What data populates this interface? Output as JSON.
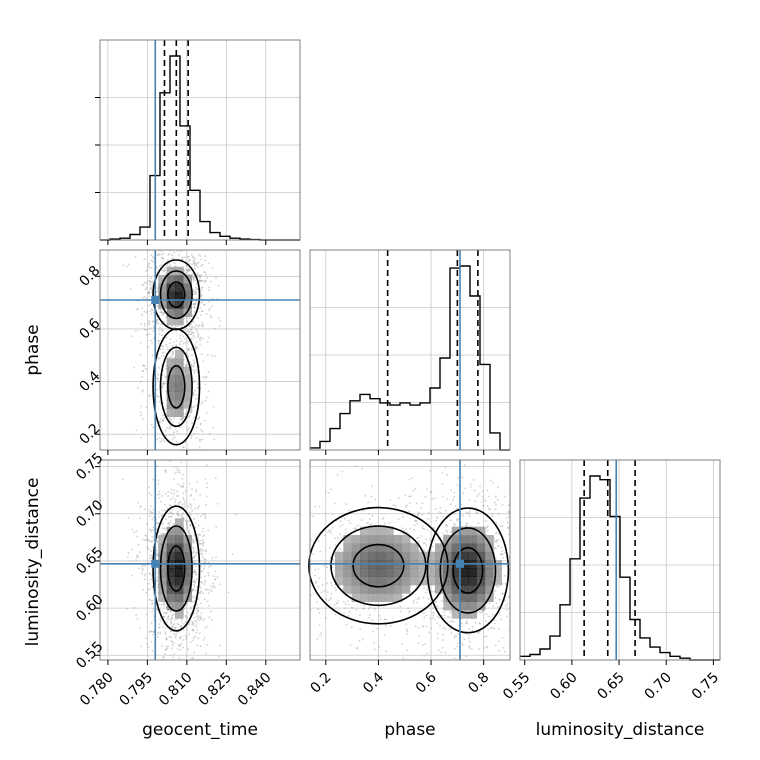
{
  "chart_data": {
    "type": "corner",
    "parameters": [
      "geocent_time",
      "phase",
      "luminosity_distance"
    ],
    "truth": {
      "geocent_time": 0.798,
      "phase": 0.71,
      "luminosity_distance": 0.647
    },
    "truth_color": "#4682b4",
    "grid": true,
    "axes": {
      "geocent_time": {
        "lim": [
          0.777,
          0.853
        ],
        "ticks": [
          "0.780",
          "0.795",
          "0.810",
          "0.825",
          "0.840"
        ],
        "tick_values": [
          0.78,
          0.795,
          0.81,
          0.825,
          0.84
        ]
      },
      "phase": {
        "lim": [
          0.14,
          0.9
        ],
        "ticks": [
          "0.2",
          "0.4",
          "0.6",
          "0.8"
        ],
        "tick_values": [
          0.2,
          0.4,
          0.6,
          0.8
        ]
      },
      "luminosity_distance": {
        "lim": [
          0.545,
          0.757
        ],
        "ticks": [
          "0.55",
          "0.60",
          "0.65",
          "0.70",
          "0.75"
        ],
        "tick_values": [
          0.55,
          0.6,
          0.65,
          0.7,
          0.75
        ]
      }
    },
    "histograms": {
      "geocent_time": {
        "bins": [
          0.777,
          0.853
        ],
        "counts": [
          0,
          0.005,
          0.01,
          0.03,
          0.07,
          0.35,
          0.8,
          1.0,
          0.62,
          0.27,
          0.1,
          0.04,
          0.02,
          0.01,
          0.005,
          0.002,
          0,
          0,
          0,
          0
        ],
        "quantiles": [
          0.8015,
          0.806,
          0.8105
        ]
      },
      "phase": {
        "bins": [
          0.14,
          0.9
        ],
        "counts": [
          0.01,
          0.04,
          0.1,
          0.17,
          0.23,
          0.26,
          0.24,
          0.22,
          0.21,
          0.22,
          0.21,
          0.22,
          0.29,
          0.43,
          0.85,
          0.86,
          0.72,
          0.4,
          0.08,
          0
        ],
        "quantiles": [
          0.435,
          0.7,
          0.778
        ]
      },
      "luminosity_distance": {
        "bins": [
          0.545,
          0.757
        ],
        "counts": [
          0.02,
          0.03,
          0.06,
          0.13,
          0.3,
          0.55,
          0.88,
          1.0,
          0.98,
          0.78,
          0.45,
          0.22,
          0.12,
          0.07,
          0.04,
          0.02,
          0.01,
          0,
          0,
          0
        ],
        "quantiles": [
          0.613,
          0.638,
          0.667
        ]
      }
    },
    "scatter_centers": {
      "phase_vs_geocent_time": [
        {
          "x": 0.806,
          "y": 0.73,
          "sx": 0.004,
          "sy": 0.06,
          "w": 0.65
        },
        {
          "x": 0.806,
          "y": 0.38,
          "sx": 0.004,
          "sy": 0.1,
          "w": 0.35
        }
      ],
      "luminosity_distance_vs_geocent_time": [
        {
          "x": 0.806,
          "y": 0.642,
          "sx": 0.004,
          "sy": 0.03,
          "w": 1.0
        }
      ],
      "luminosity_distance_vs_phase": [
        {
          "x": 0.74,
          "y": 0.64,
          "sx": 0.07,
          "sy": 0.03,
          "w": 0.6
        },
        {
          "x": 0.4,
          "y": 0.645,
          "sx": 0.12,
          "sy": 0.028,
          "w": 0.4
        }
      ]
    }
  }
}
